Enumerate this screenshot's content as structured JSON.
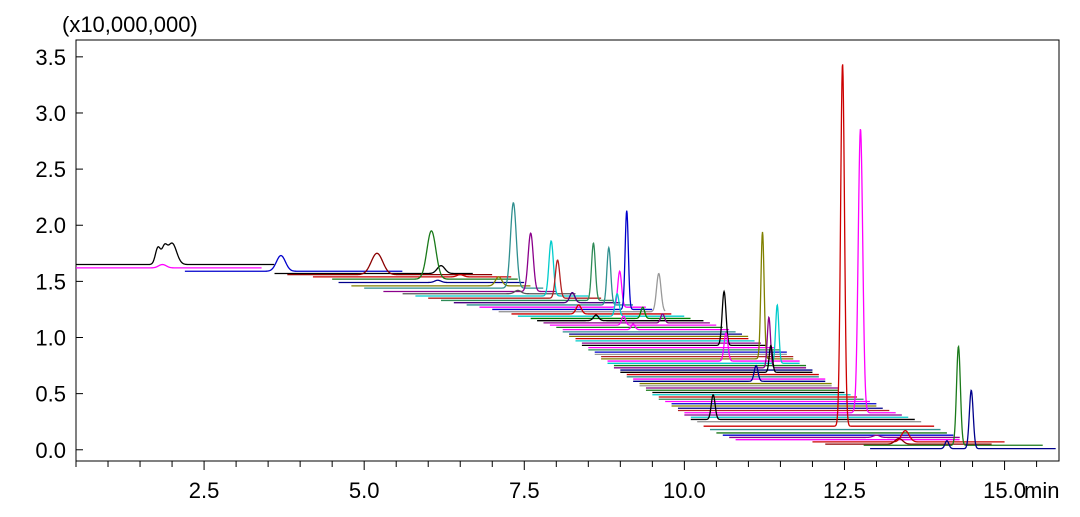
{
  "chart_data": {
    "type": "line",
    "title": "",
    "xlabel": "",
    "ylabel": "",
    "y_multiplier_label": "(x10,000,000)",
    "x_unit_label": "min",
    "xlim": [
      0.5,
      15.85
    ],
    "ylim": [
      -0.1,
      3.65
    ],
    "x_ticks": [
      2.5,
      5.0,
      7.5,
      10.0,
      12.5,
      15.0
    ],
    "x_tick_labels": [
      "2.5",
      "5.0",
      "7.5",
      "10.0",
      "12.5",
      "15.0"
    ],
    "x_minor_step": 0.5,
    "y_ticks": [
      0.0,
      0.5,
      1.0,
      1.5,
      2.0,
      2.5,
      3.0,
      3.5
    ],
    "y_tick_labels": [
      "0.0",
      "0.5",
      "1.0",
      "1.5",
      "2.0",
      "2.5",
      "3.0",
      "3.5"
    ],
    "grid": false,
    "legend": "none",
    "series": [
      {
        "color": "#000000",
        "x0": 0.5,
        "x1": 3.6,
        "baseline": 1.65,
        "peaks": [
          [
            1.78,
            0.15,
            0.04
          ],
          [
            1.88,
            0.13,
            0.04
          ],
          [
            2.0,
            0.19,
            0.07
          ]
        ]
      },
      {
        "color": "#ff00ff",
        "x0": 0.5,
        "x1": 3.4,
        "baseline": 1.62,
        "peaks": [
          [
            1.85,
            0.03,
            0.06
          ]
        ]
      },
      {
        "color": "#0000cc",
        "x0": 2.2,
        "x1": 5.6,
        "baseline": 1.59,
        "peaks": [
          [
            3.7,
            0.14,
            0.07
          ]
        ]
      },
      {
        "color": "#000000",
        "x0": 3.6,
        "x1": 6.7,
        "baseline": 1.57,
        "peaks": [
          [
            6.2,
            0.07,
            0.06
          ]
        ]
      },
      {
        "color": "#8b0000",
        "x0": 3.8,
        "x1": 7.0,
        "baseline": 1.56,
        "peaks": [
          [
            5.2,
            0.19,
            0.09
          ]
        ]
      },
      {
        "color": "#cc0000",
        "x0": 4.2,
        "x1": 7.3,
        "baseline": 1.54,
        "peaks": [
          [
            6.5,
            0.02,
            0.05
          ]
        ]
      },
      {
        "color": "#1a7a1a",
        "x0": 4.5,
        "x1": 7.4,
        "baseline": 1.52,
        "peaks": [
          [
            6.05,
            0.43,
            0.07
          ]
        ]
      },
      {
        "color": "#00008b",
        "x0": 4.6,
        "x1": 7.5,
        "baseline": 1.49,
        "peaks": [
          [
            6.15,
            0.02,
            0.05
          ]
        ]
      },
      {
        "color": "#808000",
        "x0": 4.8,
        "x1": 7.6,
        "baseline": 1.46,
        "peaks": [
          [
            7.1,
            0.08,
            0.05
          ]
        ]
      },
      {
        "color": "#2f8f8f",
        "x0": 5.0,
        "x1": 7.8,
        "baseline": 1.44,
        "peaks": [
          [
            7.33,
            0.76,
            0.045
          ]
        ]
      },
      {
        "color": "#8b008b",
        "x0": 5.3,
        "x1": 8.0,
        "baseline": 1.41,
        "peaks": [
          [
            7.6,
            0.52,
            0.04
          ]
        ]
      },
      {
        "color": "#555555",
        "x0": 5.6,
        "x1": 8.3,
        "baseline": 1.39,
        "peaks": [
          [
            7.4,
            0.03,
            0.05
          ]
        ]
      },
      {
        "color": "#00cccc",
        "x0": 5.8,
        "x1": 8.5,
        "baseline": 1.37,
        "peaks": [
          [
            7.92,
            0.49,
            0.035
          ]
        ]
      },
      {
        "color": "#b22222",
        "x0": 6.0,
        "x1": 8.7,
        "baseline": 1.35,
        "peaks": [
          [
            8.02,
            0.34,
            0.035
          ]
        ]
      },
      {
        "color": "#2e8b57",
        "x0": 6.2,
        "x1": 8.9,
        "baseline": 1.33,
        "peaks": [
          [
            8.58,
            0.51,
            0.03
          ]
        ]
      },
      {
        "color": "#4b0082",
        "x0": 6.4,
        "x1": 9.0,
        "baseline": 1.31,
        "peaks": [
          [
            8.25,
            0.09,
            0.04
          ]
        ]
      },
      {
        "color": "#2f8f8f",
        "x0": 6.6,
        "x1": 9.2,
        "baseline": 1.29,
        "peaks": [
          [
            8.82,
            0.51,
            0.03
          ]
        ]
      },
      {
        "color": "#ff00ff",
        "x0": 6.8,
        "x1": 9.4,
        "baseline": 1.27,
        "peaks": [
          [
            8.99,
            0.32,
            0.03
          ]
        ]
      },
      {
        "color": "#0000cc",
        "x0": 7.0,
        "x1": 9.5,
        "baseline": 1.25,
        "peaks": [
          [
            9.1,
            0.88,
            0.025
          ]
        ]
      },
      {
        "color": "#999999",
        "x0": 7.1,
        "x1": 9.7,
        "baseline": 1.23,
        "peaks": [
          [
            9.6,
            0.34,
            0.035
          ]
        ]
      },
      {
        "color": "#cc0000",
        "x0": 7.3,
        "x1": 9.8,
        "baseline": 1.21,
        "peaks": [
          [
            8.35,
            0.08,
            0.04
          ]
        ]
      },
      {
        "color": "#00cccc",
        "x0": 7.4,
        "x1": 10.0,
        "baseline": 1.19,
        "peaks": [
          [
            8.95,
            0.2,
            0.03
          ]
        ]
      },
      {
        "color": "#008000",
        "x0": 7.6,
        "x1": 10.1,
        "baseline": 1.17,
        "peaks": [
          [
            9.35,
            0.1,
            0.03
          ]
        ]
      },
      {
        "color": "#000000",
        "x0": 7.7,
        "x1": 10.3,
        "baseline": 1.15,
        "peaks": [
          [
            8.62,
            0.05,
            0.04
          ]
        ]
      },
      {
        "color": "#8b008b",
        "x0": 7.8,
        "x1": 10.4,
        "baseline": 1.13,
        "peaks": [
          [
            9.66,
            0.08,
            0.03
          ]
        ]
      },
      {
        "color": "#ff00ff",
        "x0": 7.9,
        "x1": 10.5,
        "baseline": 1.11,
        "peaks": [
          [
            9.05,
            0.08,
            0.03
          ]
        ]
      },
      {
        "color": "#1a7a1a",
        "x0": 8.0,
        "x1": 10.6,
        "baseline": 1.09,
        "peaks": []
      },
      {
        "color": "#ff00ff",
        "x0": 8.1,
        "x1": 10.7,
        "baseline": 1.07,
        "peaks": [
          [
            9.2,
            0.05,
            0.03
          ]
        ]
      },
      {
        "color": "#2f8f8f",
        "x0": 8.1,
        "x1": 10.8,
        "baseline": 1.05,
        "peaks": []
      },
      {
        "color": "#00008b",
        "x0": 8.2,
        "x1": 10.9,
        "baseline": 1.03,
        "peaks": []
      },
      {
        "color": "#808000",
        "x0": 8.2,
        "x1": 11.0,
        "baseline": 1.01,
        "peaks": []
      },
      {
        "color": "#cc0000",
        "x0": 8.3,
        "x1": 11.0,
        "baseline": 0.99,
        "peaks": []
      },
      {
        "color": "#00cccc",
        "x0": 8.3,
        "x1": 11.1,
        "baseline": 0.97,
        "peaks": []
      },
      {
        "color": "#8b008b",
        "x0": 8.4,
        "x1": 11.2,
        "baseline": 0.95,
        "peaks": []
      },
      {
        "color": "#000000",
        "x0": 8.4,
        "x1": 11.3,
        "baseline": 0.93,
        "peaks": [
          [
            10.62,
            0.48,
            0.03
          ]
        ]
      },
      {
        "color": "#ff00ff",
        "x0": 8.5,
        "x1": 11.4,
        "baseline": 0.91,
        "peaks": []
      },
      {
        "color": "#2e8b57",
        "x0": 8.5,
        "x1": 11.5,
        "baseline": 0.89,
        "peaks": []
      },
      {
        "color": "#0000cc",
        "x0": 8.6,
        "x1": 11.6,
        "baseline": 0.87,
        "peaks": []
      },
      {
        "color": "#999999",
        "x0": 8.6,
        "x1": 11.6,
        "baseline": 0.85,
        "peaks": []
      },
      {
        "color": "#b22222",
        "x0": 8.7,
        "x1": 11.7,
        "baseline": 0.83,
        "peaks": []
      },
      {
        "color": "#808000",
        "x0": 8.7,
        "x1": 11.7,
        "baseline": 0.81,
        "peaks": [
          [
            11.22,
            1.13,
            0.025
          ]
        ]
      },
      {
        "color": "#ff00ff",
        "x0": 8.8,
        "x1": 11.8,
        "baseline": 0.79,
        "peaks": [
          [
            10.65,
            0.25,
            0.03
          ]
        ]
      },
      {
        "color": "#00cccc",
        "x0": 8.8,
        "x1": 11.8,
        "baseline": 0.77,
        "peaks": [
          [
            11.45,
            0.52,
            0.025
          ]
        ]
      },
      {
        "color": "#1a7a1a",
        "x0": 8.9,
        "x1": 11.9,
        "baseline": 0.75,
        "peaks": []
      },
      {
        "color": "#8b008b",
        "x0": 8.9,
        "x1": 11.9,
        "baseline": 0.73,
        "peaks": [
          [
            11.32,
            0.45,
            0.025
          ]
        ]
      },
      {
        "color": "#00008b",
        "x0": 9.0,
        "x1": 12.0,
        "baseline": 0.71,
        "peaks": []
      },
      {
        "color": "#000000",
        "x0": 9.0,
        "x1": 12.0,
        "baseline": 0.69,
        "peaks": [
          [
            11.35,
            0.24,
            0.025
          ]
        ]
      },
      {
        "color": "#cc0000",
        "x0": 9.1,
        "x1": 12.1,
        "baseline": 0.67,
        "peaks": []
      },
      {
        "color": "#2f8f8f",
        "x0": 9.1,
        "x1": 12.1,
        "baseline": 0.65,
        "peaks": []
      },
      {
        "color": "#ff00ff",
        "x0": 9.2,
        "x1": 12.2,
        "baseline": 0.63,
        "peaks": []
      },
      {
        "color": "#00008b",
        "x0": 9.2,
        "x1": 12.2,
        "baseline": 0.61,
        "peaks": [
          [
            11.12,
            0.14,
            0.03
          ]
        ]
      },
      {
        "color": "#808000",
        "x0": 9.3,
        "x1": 12.3,
        "baseline": 0.59,
        "peaks": []
      },
      {
        "color": "#999999",
        "x0": 9.3,
        "x1": 12.3,
        "baseline": 0.57,
        "peaks": []
      },
      {
        "color": "#8b008b",
        "x0": 9.4,
        "x1": 12.4,
        "baseline": 0.55,
        "peaks": [
          [
            12.65,
            0.65,
            0.03
          ]
        ]
      },
      {
        "color": "#1a7a1a",
        "x0": 9.4,
        "x1": 12.4,
        "baseline": 0.53,
        "peaks": []
      },
      {
        "color": "#000000",
        "x0": 9.5,
        "x1": 12.5,
        "baseline": 0.51,
        "peaks": []
      },
      {
        "color": "#00cccc",
        "x0": 9.5,
        "x1": 12.6,
        "baseline": 0.49,
        "peaks": []
      },
      {
        "color": "#cc0000",
        "x0": 9.6,
        "x1": 12.7,
        "baseline": 0.47,
        "peaks": []
      },
      {
        "color": "#2e8b57",
        "x0": 9.6,
        "x1": 12.8,
        "baseline": 0.45,
        "peaks": []
      },
      {
        "color": "#ff00ff",
        "x0": 9.7,
        "x1": 12.9,
        "baseline": 0.43,
        "peaks": []
      },
      {
        "color": "#0000cc",
        "x0": 9.8,
        "x1": 13.0,
        "baseline": 0.41,
        "peaks": []
      },
      {
        "color": "#808000",
        "x0": 9.8,
        "x1": 13.0,
        "baseline": 0.39,
        "peaks": []
      },
      {
        "color": "#00008b",
        "x0": 9.9,
        "x1": 13.1,
        "baseline": 0.37,
        "peaks": []
      },
      {
        "color": "#b22222",
        "x0": 9.9,
        "x1": 13.2,
        "baseline": 0.35,
        "peaks": []
      },
      {
        "color": "#ff00ff",
        "x0": 10.0,
        "x1": 13.3,
        "baseline": 0.33,
        "peaks": [
          [
            12.75,
            2.53,
            0.035
          ]
        ]
      },
      {
        "color": "#8b008b",
        "x0": 10.0,
        "x1": 13.4,
        "baseline": 0.31,
        "peaks": []
      },
      {
        "color": "#00cccc",
        "x0": 10.1,
        "x1": 13.5,
        "baseline": 0.29,
        "peaks": []
      },
      {
        "color": "#000000",
        "x0": 10.1,
        "x1": 13.6,
        "baseline": 0.27,
        "peaks": [
          [
            10.45,
            0.22,
            0.03
          ]
        ]
      },
      {
        "color": "#999999",
        "x0": 10.2,
        "x1": 13.7,
        "baseline": 0.25,
        "peaks": []
      },
      {
        "color": "#cc0000",
        "x0": 10.3,
        "x1": 13.9,
        "baseline": 0.21,
        "peaks": [
          [
            12.47,
            3.23,
            0.03
          ]
        ]
      },
      {
        "color": "#2f8f8f",
        "x0": 10.4,
        "x1": 14.0,
        "baseline": 0.18,
        "peaks": []
      },
      {
        "color": "#1a7a1a",
        "x0": 10.5,
        "x1": 14.1,
        "baseline": 0.15,
        "peaks": []
      },
      {
        "color": "#0000cc",
        "x0": 10.6,
        "x1": 14.2,
        "baseline": 0.13,
        "peaks": []
      },
      {
        "color": "#8b008b",
        "x0": 10.7,
        "x1": 14.3,
        "baseline": 0.11,
        "peaks": [
          [
            13.0,
            0.02,
            0.05
          ]
        ]
      },
      {
        "color": "#ff00ff",
        "x0": 10.8,
        "x1": 14.3,
        "baseline": 0.09,
        "peaks": [
          [
            10.62,
            0.06,
            0.04
          ]
        ]
      },
      {
        "color": "#cc0000",
        "x0": 12.0,
        "x1": 15.0,
        "baseline": 0.07,
        "peaks": [
          [
            13.45,
            0.1,
            0.06
          ]
        ]
      },
      {
        "color": "#8b0000",
        "x0": 12.2,
        "x1": 14.8,
        "baseline": 0.05,
        "peaks": [
          [
            13.35,
            0.05,
            0.06
          ]
        ]
      },
      {
        "color": "#1a7a1a",
        "x0": 12.8,
        "x1": 15.6,
        "baseline": 0.04,
        "peaks": [
          [
            14.28,
            0.88,
            0.03
          ]
        ]
      },
      {
        "color": "#00008b",
        "x0": 12.9,
        "x1": 15.8,
        "baseline": 0.01,
        "peaks": [
          [
            14.1,
            0.07,
            0.03
          ],
          [
            14.48,
            0.52,
            0.03
          ]
        ]
      }
    ]
  }
}
